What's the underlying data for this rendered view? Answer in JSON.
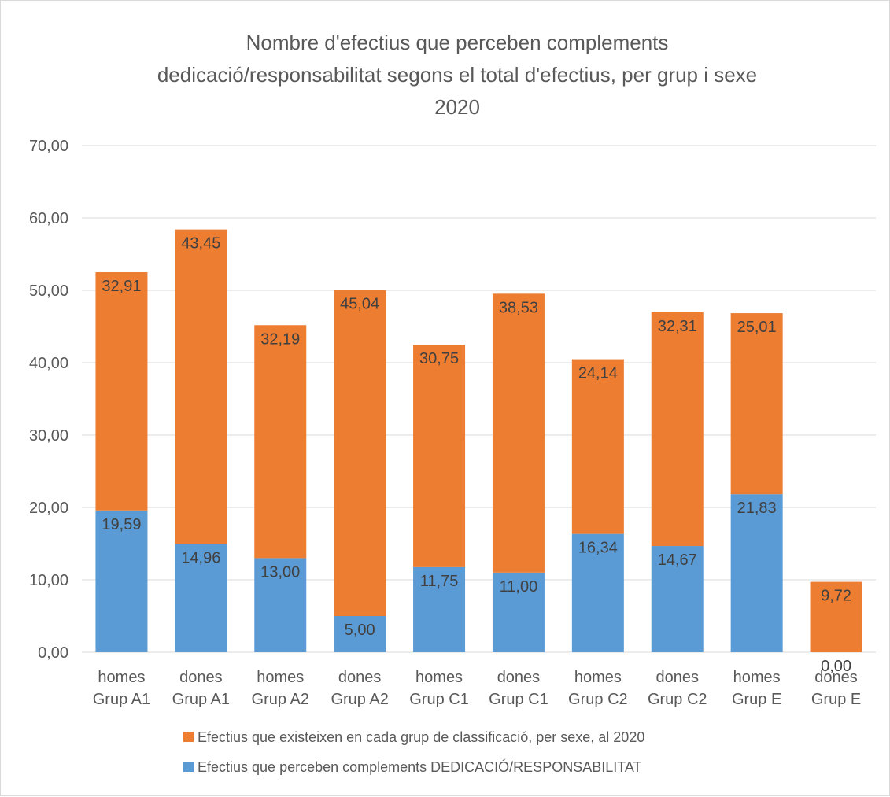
{
  "chart_data": {
    "type": "bar",
    "stacked": true,
    "title_lines": [
      "Nombre d'efectius que perceben complements",
      "dedicació/responsabilitat segons el total d'efectius, per grup i sexe",
      "2020"
    ],
    "xlabel": "",
    "ylabel": "",
    "ylim": [
      0,
      70
    ],
    "yticks": [
      "0,00",
      "10,00",
      "20,00",
      "30,00",
      "40,00",
      "50,00",
      "60,00",
      "70,00"
    ],
    "ytick_values": [
      0,
      10,
      20,
      30,
      40,
      50,
      60,
      70
    ],
    "grid": true,
    "legend_position": "bottom",
    "categories": [
      [
        "homes",
        "Grup A1"
      ],
      [
        "dones",
        "Grup A1"
      ],
      [
        "homes",
        "Grup A2"
      ],
      [
        "dones",
        "Grup A2"
      ],
      [
        "homes",
        "Grup C1"
      ],
      [
        "dones",
        "Grup  C1"
      ],
      [
        "homes",
        "Grup C2"
      ],
      [
        "dones",
        "Grup C2"
      ],
      [
        "homes",
        "Grup  E"
      ],
      [
        "dones",
        "Grup E"
      ]
    ],
    "series": [
      {
        "name": "Efectius que perceben complements DEDICACIÓ/RESPONSABILITAT",
        "color": "#5B9BD5",
        "values": [
          19.59,
          14.96,
          13.0,
          5.0,
          11.75,
          11.0,
          16.34,
          14.67,
          21.83,
          0.0
        ],
        "labels": [
          "19,59",
          "14,96",
          "13,00",
          "5,00",
          "11,75",
          "11,00",
          "16,34",
          "14,67",
          "21,83",
          "0,00"
        ]
      },
      {
        "name": "Efectius que existeixen en cada grup de classificació, per sexe, al 2020",
        "color": "#ED7D31",
        "values": [
          32.91,
          43.45,
          32.19,
          45.04,
          30.75,
          38.53,
          24.14,
          32.31,
          25.01,
          9.72
        ],
        "labels": [
          "32,91",
          "43,45",
          "32,19",
          "45,04",
          "30,75",
          "38,53",
          "24,14",
          "32,31",
          "25,01",
          "9,72"
        ]
      }
    ],
    "legend_order": [
      1,
      0
    ]
  }
}
